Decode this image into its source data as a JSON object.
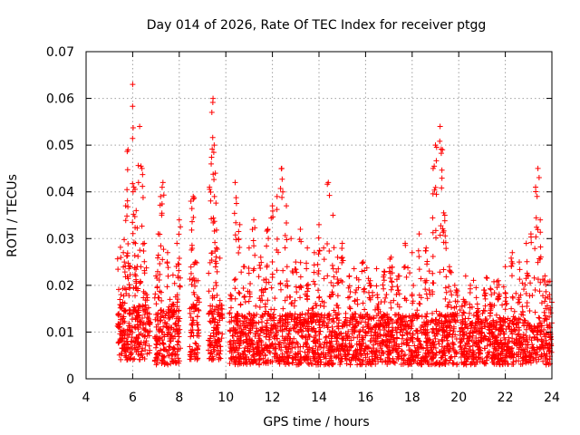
{
  "chart_data": {
    "type": "scatter",
    "title": "Day 014 of 2026, Rate Of TEC Index for receiver ptgg",
    "xlabel": "GPS time / hours",
    "ylabel": "ROTI / TECUs",
    "xlim": [
      4,
      24
    ],
    "ylim": [
      0,
      0.07
    ],
    "xticks": [
      4,
      6,
      8,
      10,
      12,
      14,
      16,
      18,
      20,
      22,
      24
    ],
    "xtick_labels": [
      "4",
      "6",
      "8",
      "10",
      "12",
      "14",
      "16",
      "18",
      "20",
      "22",
      "24"
    ],
    "yticks": [
      0,
      0.01,
      0.02,
      0.03,
      0.04,
      0.05,
      0.06,
      0.07
    ],
    "ytick_labels": [
      "0",
      "0.01",
      "0.02",
      "0.03",
      "0.04",
      "0.05",
      "0.06",
      "0.07"
    ],
    "grid": true,
    "marker": "+",
    "color": "#ff0000",
    "series": [
      {
        "name": "ROTI",
        "points": [
          [
            5.4,
            0.011
          ],
          [
            5.5,
            0.018
          ],
          [
            5.6,
            0.027
          ],
          [
            5.7,
            0.037
          ],
          [
            5.8,
            0.049
          ],
          [
            5.9,
            0.024
          ],
          [
            6.0,
            0.063
          ],
          [
            6.05,
            0.041
          ],
          [
            6.15,
            0.036
          ],
          [
            6.25,
            0.042
          ],
          [
            6.3,
            0.054
          ],
          [
            6.4,
            0.045
          ],
          [
            6.5,
            0.029
          ],
          [
            6.6,
            0.018
          ],
          [
            6.7,
            0.012
          ],
          [
            7.0,
            0.022
          ],
          [
            7.1,
            0.031
          ],
          [
            7.2,
            0.039
          ],
          [
            7.3,
            0.042
          ],
          [
            7.5,
            0.027
          ],
          [
            7.7,
            0.016
          ],
          [
            7.9,
            0.029
          ],
          [
            8.0,
            0.034
          ],
          [
            8.5,
            0.038
          ],
          [
            8.6,
            0.039
          ],
          [
            8.7,
            0.025
          ],
          [
            8.8,
            0.021
          ],
          [
            9.3,
            0.041
          ],
          [
            9.4,
            0.057
          ],
          [
            9.45,
            0.06
          ],
          [
            9.5,
            0.05
          ],
          [
            9.55,
            0.044
          ],
          [
            9.6,
            0.028
          ],
          [
            9.8,
            0.015
          ],
          [
            10.2,
            0.018
          ],
          [
            10.4,
            0.042
          ],
          [
            10.6,
            0.033
          ],
          [
            10.8,
            0.024
          ],
          [
            11.0,
            0.028
          ],
          [
            11.2,
            0.034
          ],
          [
            11.5,
            0.026
          ],
          [
            11.8,
            0.032
          ],
          [
            12.0,
            0.037
          ],
          [
            12.2,
            0.039
          ],
          [
            12.4,
            0.045
          ],
          [
            12.6,
            0.037
          ],
          [
            12.8,
            0.03
          ],
          [
            13.0,
            0.025
          ],
          [
            13.2,
            0.032
          ],
          [
            13.5,
            0.028
          ],
          [
            13.8,
            0.027
          ],
          [
            14.0,
            0.033
          ],
          [
            14.2,
            0.028
          ],
          [
            14.4,
            0.042
          ],
          [
            14.6,
            0.035
          ],
          [
            14.8,
            0.026
          ],
          [
            15.0,
            0.029
          ],
          [
            15.3,
            0.022
          ],
          [
            15.6,
            0.019
          ],
          [
            15.9,
            0.025
          ],
          [
            16.2,
            0.021
          ],
          [
            16.5,
            0.018
          ],
          [
            16.8,
            0.023
          ],
          [
            17.1,
            0.026
          ],
          [
            17.4,
            0.022
          ],
          [
            17.7,
            0.029
          ],
          [
            18.0,
            0.027
          ],
          [
            18.3,
            0.031
          ],
          [
            18.6,
            0.028
          ],
          [
            18.9,
            0.045
          ],
          [
            19.0,
            0.05
          ],
          [
            19.2,
            0.054
          ],
          [
            19.3,
            0.049
          ],
          [
            19.4,
            0.035
          ],
          [
            19.6,
            0.024
          ],
          [
            19.9,
            0.019
          ],
          [
            20.2,
            0.017
          ],
          [
            20.5,
            0.02
          ],
          [
            20.8,
            0.016
          ],
          [
            21.1,
            0.019
          ],
          [
            21.4,
            0.018
          ],
          [
            21.7,
            0.021
          ],
          [
            22.0,
            0.024
          ],
          [
            22.3,
            0.027
          ],
          [
            22.6,
            0.025
          ],
          [
            22.9,
            0.029
          ],
          [
            23.1,
            0.031
          ],
          [
            23.3,
            0.041
          ],
          [
            23.4,
            0.045
          ],
          [
            23.5,
            0.034
          ],
          [
            23.7,
            0.022
          ],
          [
            23.9,
            0.018
          ]
        ],
        "segments": [
          {
            "from": 5.35,
            "to": 6.75,
            "base": [
              0.004,
              0.016
            ],
            "peak": 0.03
          },
          {
            "from": 6.95,
            "to": 8.05,
            "base": [
              0.003,
              0.015
            ],
            "peak": 0.026
          },
          {
            "from": 8.45,
            "to": 8.85,
            "base": [
              0.004,
              0.016
            ],
            "peak": 0.028
          },
          {
            "from": 9.25,
            "to": 9.85,
            "base": [
              0.004,
              0.016
            ],
            "peak": 0.026
          },
          {
            "from": 10.15,
            "to": 19.95,
            "base": [
              0.003,
              0.014
            ],
            "peak": 0.024
          },
          {
            "from": 20.05,
            "to": 24.0,
            "base": [
              0.003,
              0.013
            ],
            "peak": 0.022
          }
        ]
      }
    ]
  }
}
